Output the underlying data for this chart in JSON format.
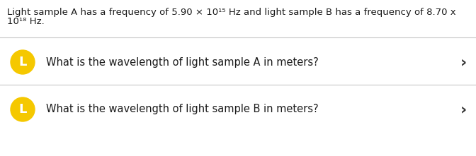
{
  "background_color": "#ffffff",
  "header_text_line1": "Light sample A has a frequency of 5.90 × 10¹⁵ Hz and light sample B has a frequency of 8.70 x",
  "header_text_line2": "10¹⁸ Hz.",
  "divider_color": "#c8c8c8",
  "question_a": "What is the wavelength of light sample A in meters?",
  "question_b": "What is the wavelength of light sample B in meters?",
  "icon_color": "#f5c800",
  "icon_label": "L",
  "icon_label_color": "#ffffff",
  "arrow_char": "›",
  "arrow_color": "#333333",
  "text_color": "#1a1a1a",
  "header_fontsize": 9.5,
  "question_fontsize": 10.5,
  "icon_fontsize": 13,
  "arrow_fontsize": 16
}
